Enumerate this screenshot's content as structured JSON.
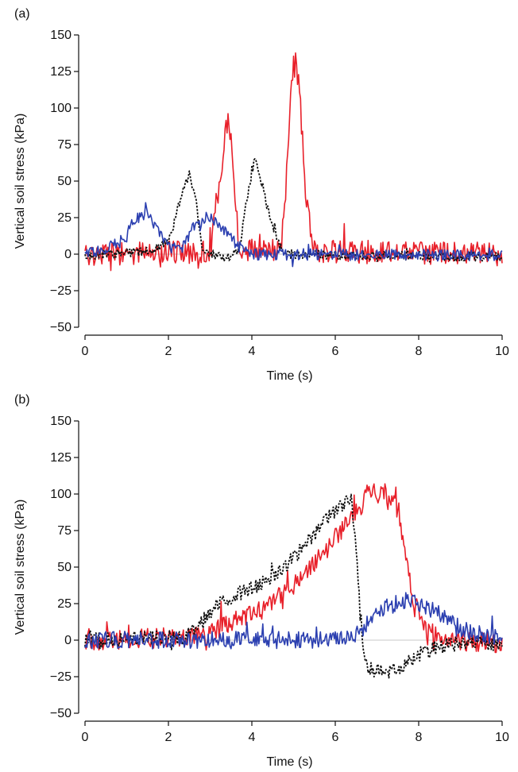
{
  "figure": {
    "panels": [
      "(a)",
      "(b)"
    ]
  },
  "chart_data": [
    {
      "type": "line",
      "panel_label": "(a)",
      "xlabel": "Time (s)",
      "ylabel": "Vertical soil stress (kPa)",
      "xlim": [
        0,
        10
      ],
      "ylim": [
        -50,
        150
      ],
      "xticks": [
        "0",
        "2",
        "4",
        "6",
        "8",
        "10"
      ],
      "yticks": [
        "-50",
        "-25",
        "0",
        "25",
        "50",
        "75",
        "100",
        "125",
        "150"
      ],
      "grid": false,
      "series": [
        {
          "color": "#e8202a",
          "dash": "solid",
          "noise": 8,
          "x": [
            0,
            3.0,
            3.2,
            3.35,
            3.45,
            3.6,
            3.7,
            4.7,
            4.85,
            4.95,
            5.05,
            5.15,
            5.3,
            5.5,
            10
          ],
          "y": [
            0,
            2,
            40,
            80,
            92,
            40,
            3,
            3,
            60,
            115,
            132,
            110,
            35,
            2,
            0
          ]
        },
        {
          "color": "#111111",
          "dash": "dotted",
          "noise": 3,
          "x": [
            0,
            1.6,
            2.0,
            2.3,
            2.5,
            2.65,
            2.8,
            3.4,
            3.7,
            3.9,
            4.05,
            4.15,
            4.35,
            4.55,
            4.75,
            10
          ],
          "y": [
            -1,
            2,
            8,
            38,
            55,
            40,
            3,
            -3,
            4,
            40,
            63,
            60,
            35,
            15,
            0,
            -2
          ]
        },
        {
          "color": "#2b3fb0",
          "dash": "solid",
          "noise": 4,
          "x": [
            0,
            0.9,
            1.1,
            1.3,
            1.5,
            1.7,
            2.0,
            2.3,
            2.6,
            2.9,
            3.1,
            3.4,
            3.7,
            4.0,
            10
          ],
          "y": [
            0,
            8,
            20,
            26,
            28,
            18,
            5,
            3,
            18,
            25,
            22,
            14,
            5,
            0,
            -1
          ]
        }
      ]
    },
    {
      "type": "line",
      "panel_label": "(b)",
      "xlabel": "Time (s)",
      "ylabel": "Vertical soil stress (kPa)",
      "xlim": [
        0,
        10
      ],
      "ylim": [
        -50,
        150
      ],
      "xticks": [
        "0",
        "2",
        "4",
        "6",
        "8",
        "10"
      ],
      "yticks": [
        "-50",
        "-25",
        "0",
        "25",
        "50",
        "75",
        "100",
        "125",
        "150"
      ],
      "grid": false,
      "series": [
        {
          "color": "#e8202a",
          "dash": "solid",
          "noise": 7,
          "x": [
            0,
            2.7,
            3.2,
            3.8,
            4.3,
            4.8,
            5.3,
            5.8,
            6.2,
            6.6,
            6.8,
            7.2,
            7.5,
            7.7,
            7.9,
            8.2,
            8.5,
            10
          ],
          "y": [
            0,
            2,
            8,
            15,
            22,
            32,
            45,
            62,
            78,
            90,
            102,
            98,
            90,
            58,
            22,
            8,
            0,
            -2
          ]
        },
        {
          "color": "#111111",
          "dash": "dotted",
          "noise": 5,
          "x": [
            0,
            2.4,
            2.8,
            3.2,
            3.7,
            4.2,
            4.7,
            5.2,
            5.7,
            6.1,
            6.4,
            6.55,
            6.7,
            6.85,
            7.2,
            7.6,
            8.0,
            8.4,
            8.8,
            9.5,
            10
          ],
          "y": [
            0,
            2,
            12,
            25,
            32,
            38,
            48,
            62,
            80,
            92,
            96,
            40,
            -15,
            -20,
            -22,
            -18,
            -10,
            -5,
            -3,
            -2,
            -2
          ]
        },
        {
          "color": "#2b3fb0",
          "dash": "solid",
          "noise": 6,
          "x": [
            0,
            5.5,
            6.3,
            6.6,
            6.9,
            7.2,
            7.5,
            7.8,
            8.1,
            8.4,
            8.7,
            9.0,
            10
          ],
          "y": [
            0,
            0,
            2,
            6,
            15,
            22,
            26,
            27,
            24,
            20,
            15,
            8,
            0
          ]
        }
      ]
    }
  ]
}
